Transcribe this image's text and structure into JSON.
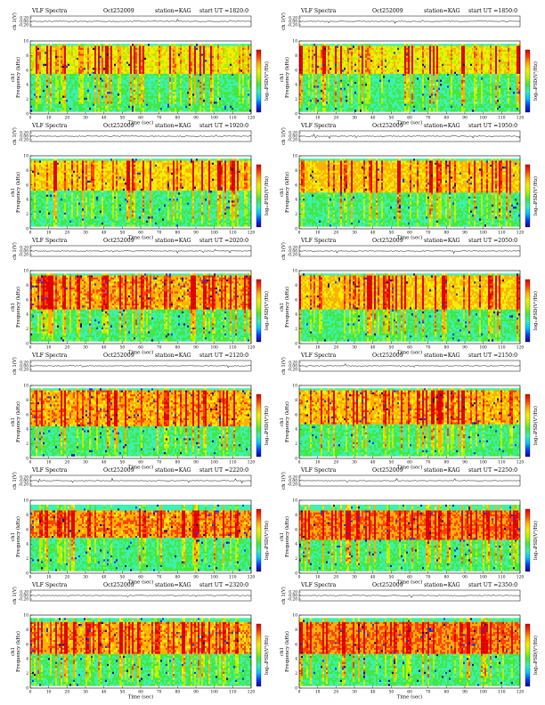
{
  "figure": {
    "colors": {
      "background": "#ffffff",
      "trace": "#000000",
      "colormap": [
        "#1800a0",
        "#0040ff",
        "#00c8ff",
        "#3cf0b0",
        "#40e840",
        "#b4f000",
        "#f0f000",
        "#ffb000",
        "#ff4000",
        "#e00000"
      ]
    }
  },
  "chart_data": [
    {
      "type": "heatmap",
      "title_left": "VLF Spectra",
      "date": "Oct252009",
      "station": "station=KAG",
      "start": "start  UT  =1820:0",
      "trace": {
        "ylabel": "ch 1(V)",
        "ticks": [
          "0.20",
          "0.00",
          "-0.20"
        ],
        "ylim": [
          -0.25,
          0.25
        ]
      },
      "xlabel": "Time  (sec)",
      "xlim": [
        0,
        120
      ],
      "x_ticks": [
        "0",
        "10",
        "20",
        "30",
        "40",
        "50",
        "60",
        "70",
        "80",
        "90",
        "100",
        "110",
        "120"
      ],
      "ylabel_channel": "ch1",
      "ylabel": "Frequency  (kHz)",
      "ylim": [
        0,
        10
      ],
      "y_ticks": [
        "0",
        "2",
        "4",
        "6",
        "8",
        "10"
      ],
      "colorbar": {
        "label": "log₁₀PSD(V²/Hz)",
        "ticks": [
          "",
          "",
          ""
        ]
      },
      "band": {
        "low_khz": 0.3,
        "high_khz": 9.6,
        "bright_top_khz": 9.4,
        "bright_bottom_khz": 5.6,
        "intensity": 0.55
      }
    },
    {
      "type": "heatmap",
      "title_left": "VLF Spectra",
      "date": "Oct252009",
      "station": "station=KAG",
      "start": "start  UT  =1850:0",
      "trace": {
        "ylabel": "ch 1(V)",
        "ticks": [
          "0.20",
          "0.00",
          "-0.20"
        ],
        "ylim": [
          -0.25,
          0.25
        ]
      },
      "xlabel": "Time  (sec)",
      "xlim": [
        0,
        120
      ],
      "x_ticks": [
        "0",
        "10",
        "20",
        "30",
        "40",
        "50",
        "60",
        "70",
        "80",
        "90",
        "100",
        "110",
        "120"
      ],
      "ylabel_channel": "ch1",
      "ylabel": "Frequency  (kHz)",
      "ylim": [
        0,
        10
      ],
      "y_ticks": [
        "0",
        "2",
        "4",
        "6",
        "8",
        "10"
      ],
      "colorbar": {
        "label": "log₁₀PSD(V²/Hz)",
        "ticks": [
          "",
          "",
          ""
        ]
      },
      "band": {
        "low_khz": 0.3,
        "high_khz": 9.6,
        "bright_top_khz": 9.4,
        "bright_bottom_khz": 5.4,
        "intensity": 0.55
      }
    },
    {
      "type": "heatmap",
      "title_left": "VLF Spectra",
      "date": "Oct252009",
      "station": "station=KAG",
      "start": "start  UT  =1920:0",
      "trace": {
        "ylabel": "ch 1(V)",
        "ticks": [
          "0.20",
          "0.00",
          "-0.20"
        ],
        "ylim": [
          -0.25,
          0.25
        ]
      },
      "xlabel": "Time  (sec)",
      "xlim": [
        0,
        120
      ],
      "x_ticks": [
        "0",
        "10",
        "20",
        "30",
        "40",
        "50",
        "60",
        "70",
        "80",
        "90",
        "100",
        "110",
        "120"
      ],
      "ylabel_channel": "ch1",
      "ylabel": "Frequency  (kHz)",
      "ylim": [
        0,
        10
      ],
      "y_ticks": [
        "0",
        "2",
        "4",
        "6",
        "8",
        "10"
      ],
      "colorbar": {
        "label": "log₁₀PSD(V²/Hz)",
        "ticks": [
          "",
          "",
          ""
        ]
      },
      "band": {
        "low_khz": 0.3,
        "high_khz": 9.6,
        "bright_top_khz": 9.4,
        "bright_bottom_khz": 5.2,
        "intensity": 0.6
      }
    },
    {
      "type": "heatmap",
      "title_left": "VLF Spectra",
      "date": "Oct252009",
      "station": "station=KAG",
      "start": "start  UT  =1950:0",
      "trace": {
        "ylabel": "ch 1(V)",
        "ticks": [
          "0.20",
          "0.00",
          "-0.20"
        ],
        "ylim": [
          -0.25,
          0.25
        ]
      },
      "xlabel": "Time  (sec)",
      "xlim": [
        0,
        120
      ],
      "x_ticks": [
        "0",
        "10",
        "20",
        "30",
        "40",
        "50",
        "60",
        "70",
        "80",
        "90",
        "100",
        "110",
        "120"
      ],
      "ylabel_channel": "ch1",
      "ylabel": "Frequency  (kHz)",
      "ylim": [
        0,
        10
      ],
      "y_ticks": [
        "0",
        "2",
        "4",
        "6",
        "8",
        "10"
      ],
      "colorbar": {
        "label": "log₁₀PSD(V²/Hz)",
        "ticks": [
          "",
          "",
          ""
        ]
      },
      "band": {
        "low_khz": 0.3,
        "high_khz": 9.6,
        "bright_top_khz": 9.4,
        "bright_bottom_khz": 5.0,
        "intensity": 0.62
      }
    },
    {
      "type": "heatmap",
      "title_left": "VLF Spectra",
      "date": "Oct252009",
      "station": "station=KAG",
      "start": "start  UT  =2020:0",
      "trace": {
        "ylabel": "ch 1(V)",
        "ticks": [
          "0.20",
          "0.00",
          "-0.20"
        ],
        "ylim": [
          -0.25,
          0.25
        ]
      },
      "xlabel": "Time  (sec)",
      "xlim": [
        0,
        120
      ],
      "x_ticks": [
        "0",
        "10",
        "20",
        "30",
        "40",
        "50",
        "60",
        "70",
        "80",
        "90",
        "100",
        "110",
        "120"
      ],
      "ylabel_channel": "ch1",
      "ylabel": "Frequency  (kHz)",
      "ylim": [
        0,
        10
      ],
      "y_ticks": [
        "0",
        "2",
        "4",
        "6",
        "8",
        "10"
      ],
      "colorbar": {
        "label": "log₁₀PSD(V²/Hz)",
        "ticks": [
          "",
          "",
          ""
        ]
      },
      "band": {
        "low_khz": 0.3,
        "high_khz": 9.6,
        "bright_top_khz": 9.4,
        "bright_bottom_khz": 4.6,
        "intensity": 0.66
      }
    },
    {
      "type": "heatmap",
      "title_left": "VLF Spectra",
      "date": "Oct252009",
      "station": "station=KAG",
      "start": "start  UT  =2050:0",
      "trace": {
        "ylabel": "ch 1(V)",
        "ticks": [
          "0.20",
          "0.00",
          "-0.20"
        ],
        "ylim": [
          -0.25,
          0.25
        ]
      },
      "xlabel": "Time  (sec)",
      "xlim": [
        0,
        120
      ],
      "x_ticks": [
        "0",
        "10",
        "20",
        "30",
        "40",
        "50",
        "60",
        "70",
        "80",
        "90",
        "100",
        "110",
        "120"
      ],
      "ylabel_channel": "ch1",
      "ylabel": "Frequency  (kHz)",
      "ylim": [
        0,
        10
      ],
      "y_ticks": [
        "0",
        "2",
        "4",
        "6",
        "8",
        "10"
      ],
      "colorbar": {
        "label": "log₁₀PSD(V²/Hz)",
        "ticks": [
          "",
          "",
          ""
        ]
      },
      "band": {
        "low_khz": 0.3,
        "high_khz": 9.6,
        "bright_top_khz": 9.4,
        "bright_bottom_khz": 4.8,
        "intensity": 0.62
      }
    },
    {
      "type": "heatmap",
      "title_left": "VLF Spectra",
      "date": "Oct252009",
      "station": "station=KAG",
      "start": "start  UT  =2120:0",
      "trace": {
        "ylabel": "ch 1(V)",
        "ticks": [
          "0.20",
          "0.00",
          "-0.20"
        ],
        "ylim": [
          -0.25,
          0.25
        ]
      },
      "xlabel": "Time  (sec)",
      "xlim": [
        0,
        120
      ],
      "x_ticks": [
        "0",
        "10",
        "20",
        "30",
        "40",
        "50",
        "60",
        "70",
        "80",
        "90",
        "100",
        "110",
        "120"
      ],
      "ylabel_channel": "ch1",
      "ylabel": "Frequency  (kHz)",
      "ylim": [
        0,
        10
      ],
      "y_ticks": [
        "0",
        "2",
        "4",
        "6",
        "8",
        "10"
      ],
      "colorbar": {
        "label": "log₁₀PSD(V²/Hz)",
        "ticks": [
          "",
          "",
          ""
        ]
      },
      "band": {
        "low_khz": 0.3,
        "high_khz": 9.6,
        "bright_top_khz": 9.2,
        "bright_bottom_khz": 4.4,
        "intensity": 0.66
      }
    },
    {
      "type": "heatmap",
      "title_left": "VLF Spectra",
      "date": "Oct252009",
      "station": "station=KAG",
      "start": "start  UT  =2150:0",
      "trace": {
        "ylabel": "ch 1(V)",
        "ticks": [
          "0.20",
          "0.00",
          "-0.20"
        ],
        "ylim": [
          -0.25,
          0.25
        ]
      },
      "xlabel": "Time  (sec)",
      "xlim": [
        0,
        120
      ],
      "x_ticks": [
        "0",
        "10",
        "20",
        "30",
        "40",
        "50",
        "60",
        "70",
        "80",
        "90",
        "100",
        "110",
        "120"
      ],
      "ylabel_channel": "ch1",
      "ylabel": "Frequency  (kHz)",
      "ylim": [
        0,
        10
      ],
      "y_ticks": [
        "0",
        "2",
        "4",
        "6",
        "8",
        "10"
      ],
      "colorbar": {
        "label": "log₁₀PSD(V²/Hz)",
        "ticks": [
          "",
          "",
          ""
        ]
      },
      "band": {
        "low_khz": 0.3,
        "high_khz": 9.6,
        "bright_top_khz": 9.2,
        "bright_bottom_khz": 4.6,
        "intensity": 0.64
      }
    },
    {
      "type": "heatmap",
      "title_left": "VLF Spectra",
      "date": "Oct252009",
      "station": "station=KAG",
      "start": "start  UT  =2220:0",
      "trace": {
        "ylabel": "ch 1(V)",
        "ticks": [
          "0.20",
          "0.00",
          "-0.20"
        ],
        "ylim": [
          -0.25,
          0.25
        ]
      },
      "xlabel": "Time  (sec)",
      "xlim": [
        0,
        120
      ],
      "x_ticks": [
        "0",
        "10",
        "20",
        "30",
        "40",
        "50",
        "60",
        "70",
        "80",
        "90",
        "100",
        "110",
        "120"
      ],
      "ylabel_channel": "ch1",
      "ylabel": "Frequency  (kHz)",
      "ylim": [
        0,
        10
      ],
      "y_ticks": [
        "0",
        "2",
        "4",
        "6",
        "8",
        "10"
      ],
      "colorbar": {
        "label": "log₁₀PSD(V²/Hz)",
        "ticks": [
          "",
          "",
          ""
        ]
      },
      "band": {
        "low_khz": 0.3,
        "high_khz": 9.4,
        "bright_top_khz": 8.6,
        "bright_bottom_khz": 4.8,
        "intensity": 0.68
      }
    },
    {
      "type": "heatmap",
      "title_left": "VLF Spectra",
      "date": "Oct252009",
      "station": "station=KAG",
      "start": "start  UT  =2250:0",
      "trace": {
        "ylabel": "ch 1(V)",
        "ticks": [
          "0.20",
          "0.00",
          "-0.20"
        ],
        "ylim": [
          -0.25,
          0.25
        ]
      },
      "xlabel": "Time  (sec)",
      "xlim": [
        0,
        120
      ],
      "x_ticks": [
        "0",
        "10",
        "20",
        "30",
        "40",
        "50",
        "60",
        "70",
        "80",
        "90",
        "100",
        "110",
        "120"
      ],
      "ylabel_channel": "ch1",
      "ylabel": "Frequency  (kHz)",
      "ylim": [
        0,
        10
      ],
      "y_ticks": [
        "0",
        "2",
        "4",
        "6",
        "8",
        "10"
      ],
      "colorbar": {
        "label": "log₁₀PSD(V²/Hz)",
        "ticks": [
          "",
          "",
          ""
        ]
      },
      "band": {
        "low_khz": 0.3,
        "high_khz": 9.4,
        "bright_top_khz": 8.6,
        "bright_bottom_khz": 4.6,
        "intensity": 0.7
      }
    },
    {
      "type": "heatmap",
      "title_left": "VLF Spectra",
      "date": "Oct252009",
      "station": "station=KAG",
      "start": "start  UT  =2320:0",
      "trace": {
        "ylabel": "ch 1(V)",
        "ticks": [
          "0.20",
          "0.00",
          "-0.20"
        ],
        "ylim": [
          -0.25,
          0.25
        ]
      },
      "xlabel": "Time  (sec)",
      "xlim": [
        0,
        120
      ],
      "x_ticks": [
        "0",
        "10",
        "20",
        "30",
        "40",
        "50",
        "60",
        "70",
        "80",
        "90",
        "100",
        "110",
        "120"
      ],
      "ylabel_channel": "ch1",
      "ylabel": "Frequency  (kHz)",
      "ylim": [
        0,
        10
      ],
      "y_ticks": [
        "0",
        "2",
        "4",
        "6",
        "8",
        "10"
      ],
      "colorbar": {
        "label": "log₁₀PSD(V²/Hz)",
        "ticks": [
          "",
          "",
          ""
        ]
      },
      "band": {
        "low_khz": 0.3,
        "high_khz": 9.6,
        "bright_top_khz": 9.0,
        "bright_bottom_khz": 4.8,
        "intensity": 0.66
      }
    },
    {
      "type": "heatmap",
      "title_left": "VLF Spectra",
      "date": "Oct252009",
      "station": "station=KAG",
      "start": "start  UT  =2350:0",
      "trace": {
        "ylabel": "ch 1(V)",
        "ticks": [
          "0.20",
          "0.00",
          "-0.20"
        ],
        "ylim": [
          -0.25,
          0.25
        ]
      },
      "xlabel": "Time  (sec)",
      "xlim": [
        0,
        120
      ],
      "x_ticks": [
        "0",
        "10",
        "20",
        "30",
        "40",
        "50",
        "60",
        "70",
        "80",
        "90",
        "100",
        "110",
        "120"
      ],
      "ylabel_channel": "ch1",
      "ylabel": "Frequency  (kHz)",
      "ylim": [
        0,
        10
      ],
      "y_ticks": [
        "0",
        "2",
        "4",
        "6",
        "8",
        "10"
      ],
      "colorbar": {
        "label": "log₁₀PSD(V²/Hz)",
        "ticks": [
          "",
          "",
          ""
        ]
      },
      "band": {
        "low_khz": 0.3,
        "high_khz": 9.6,
        "bright_top_khz": 9.0,
        "bright_bottom_khz": 4.6,
        "intensity": 0.7
      }
    }
  ]
}
